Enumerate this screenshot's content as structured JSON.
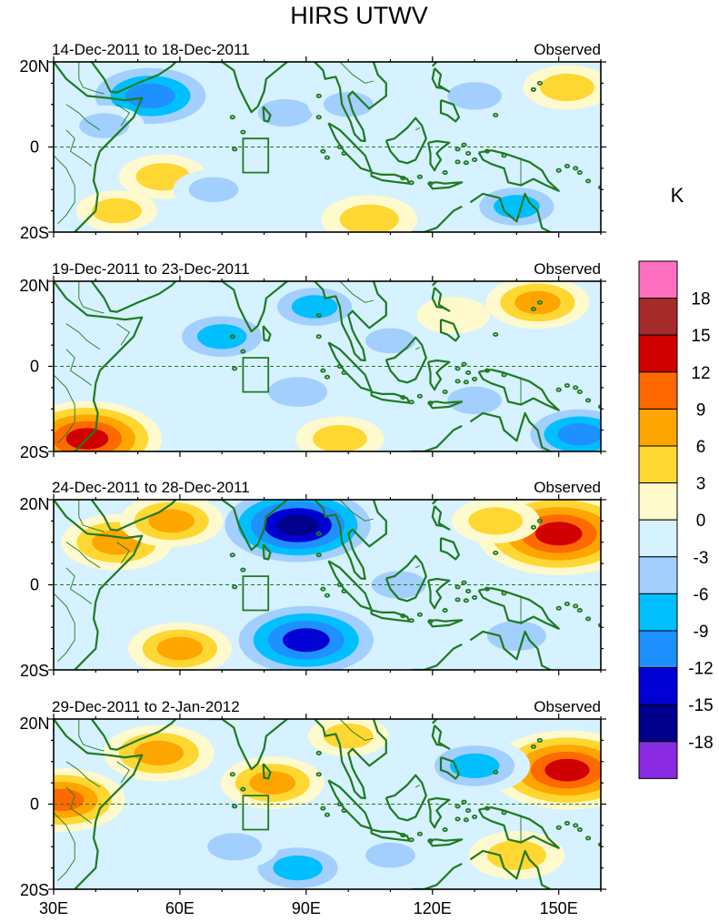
{
  "title": "HIRS UTWV",
  "units": "K",
  "panels": [
    {
      "date_range": "14-Dec-2011 to 18-Dec-2011",
      "label": "Observed"
    },
    {
      "date_range": "19-Dec-2011 to 23-Dec-2011",
      "label": "Observed"
    },
    {
      "date_range": "24-Dec-2011 to 28-Dec-2011",
      "label": "Observed"
    },
    {
      "date_range": "29-Dec-2011 to 2-Jan-2012",
      "label": "Observed"
    }
  ],
  "lat_labels": [
    "20N",
    "0",
    "20S"
  ],
  "lon_labels": [
    "30E",
    "60E",
    "90E",
    "120E",
    "150E"
  ],
  "colorbar": {
    "labels": [
      "18",
      "15",
      "12",
      "9",
      "6",
      "3",
      "0",
      "-3",
      "-6",
      "-9",
      "-12",
      "-15",
      "-18"
    ],
    "colors": [
      "#ff6fc0",
      "#a52a2a",
      "#d00000",
      "#ff6a00",
      "#ffa500",
      "#ffd733",
      "#fffacd",
      "#d6f1ff",
      "#a3cfff",
      "#00bfff",
      "#1e90ff",
      "#0000d5",
      "#00008b",
      "#8a2be2"
    ]
  },
  "coast_color": "#1f7a1f",
  "chart_data": {
    "type": "heatmap",
    "title": "HIRS UTWV",
    "units": "K",
    "lon_range": [
      30,
      160
    ],
    "lat_range": [
      -20,
      20
    ],
    "levels": [
      -18,
      -15,
      -12,
      -9,
      -6,
      -3,
      0,
      3,
      6,
      9,
      12,
      15,
      18
    ],
    "anomaly_centers": [
      [
        {
          "lon": 53,
          "lat": 12,
          "value": -12
        },
        {
          "lon": 42,
          "lat": 5,
          "value": -4
        },
        {
          "lon": 85,
          "lat": 8,
          "value": -5
        },
        {
          "lon": 100,
          "lat": 10,
          "value": -4
        },
        {
          "lon": 130,
          "lat": 12,
          "value": -5
        },
        {
          "lon": 152,
          "lat": 14,
          "value": 5
        },
        {
          "lon": 56,
          "lat": -7,
          "value": 5
        },
        {
          "lon": 105,
          "lat": -17,
          "value": 6
        },
        {
          "lon": 68,
          "lat": -10,
          "value": -4
        },
        {
          "lon": 140,
          "lat": -14,
          "value": -7
        },
        {
          "lon": 45,
          "lat": -15,
          "value": 4
        }
      ],
      [
        {
          "lon": 70,
          "lat": 7,
          "value": -8
        },
        {
          "lon": 92,
          "lat": 14,
          "value": -7
        },
        {
          "lon": 110,
          "lat": 6,
          "value": -4
        },
        {
          "lon": 145,
          "lat": 15,
          "value": 7
        },
        {
          "lon": 125,
          "lat": 12,
          "value": 3
        },
        {
          "lon": 38,
          "lat": -17,
          "value": 13
        },
        {
          "lon": 98,
          "lat": -17,
          "value": 5
        },
        {
          "lon": 88,
          "lat": -6,
          "value": -6
        },
        {
          "lon": 155,
          "lat": -16,
          "value": -10
        },
        {
          "lon": 130,
          "lat": -8,
          "value": -5
        }
      ],
      [
        {
          "lon": 88,
          "lat": 14,
          "value": -16
        },
        {
          "lon": 90,
          "lat": -13,
          "value": -15
        },
        {
          "lon": 150,
          "lat": 12,
          "value": 15
        },
        {
          "lon": 135,
          "lat": 15,
          "value": 5
        },
        {
          "lon": 45,
          "lat": 10,
          "value": 8
        },
        {
          "lon": 58,
          "lat": 15,
          "value": 7
        },
        {
          "lon": 60,
          "lat": -15,
          "value": 7
        },
        {
          "lon": 112,
          "lat": 0,
          "value": -5
        },
        {
          "lon": 140,
          "lat": -12,
          "value": -6
        },
        {
          "lon": 45,
          "lat": -4,
          "value": -3
        }
      ],
      [
        {
          "lon": 152,
          "lat": 8,
          "value": 14
        },
        {
          "lon": 130,
          "lat": 9,
          "value": -8
        },
        {
          "lon": 82,
          "lat": 5,
          "value": 7
        },
        {
          "lon": 55,
          "lat": 12,
          "value": 8
        },
        {
          "lon": 32,
          "lat": 1,
          "value": 10
        },
        {
          "lon": 88,
          "lat": -15,
          "value": -8
        },
        {
          "lon": 73,
          "lat": -10,
          "value": -5
        },
        {
          "lon": 140,
          "lat": -12,
          "value": 6
        },
        {
          "lon": 110,
          "lat": -12,
          "value": -4
        },
        {
          "lon": 100,
          "lat": 16,
          "value": 4
        }
      ]
    ]
  }
}
